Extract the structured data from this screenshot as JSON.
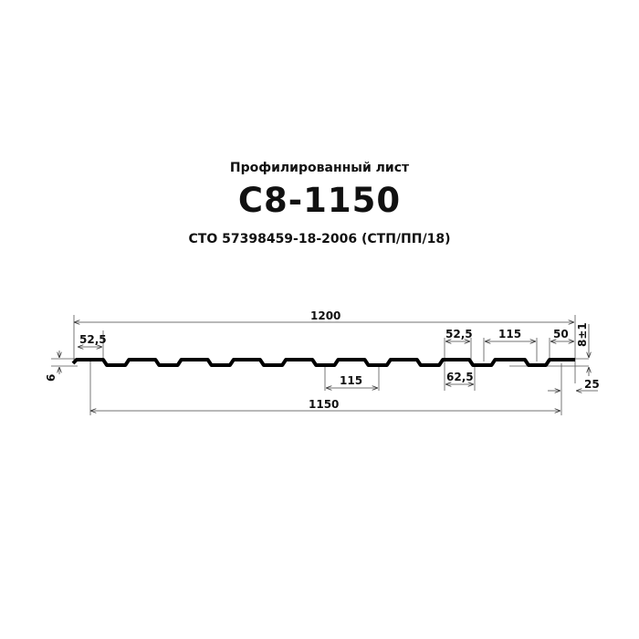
{
  "header": {
    "subtitle": "Профилированный лист",
    "title": "С8-1150",
    "standard": "СТО 57398459-18-2006 (СТП/ПП/18)"
  },
  "dimensions": {
    "total_width": "1200",
    "useful_width": "1150",
    "left_crest": "52,5",
    "height_left": "6",
    "pitch_bottom": "115",
    "crest_right": "52,5",
    "base_right": "62,5",
    "pitch_right": "115",
    "overlap": "50",
    "height_right": "8±1",
    "edge": "25"
  }
}
